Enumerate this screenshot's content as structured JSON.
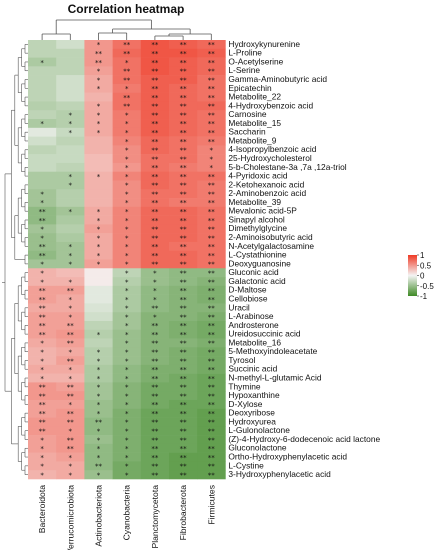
{
  "chart_data": {
    "type": "heatmap",
    "title": "Correlation heatmap",
    "columns": [
      "Bacteroidota",
      "Verrucomicrobiota",
      "Actinobacteriota",
      "Cyanobacteria",
      "Planctomycetota",
      "Fibrobacterota",
      "Firmicutes"
    ],
    "rows": [
      "Hydroxykynurenine",
      "L-Proline",
      "O-Acetylserine",
      "L-Serine",
      "Gamma-Aminobutyric acid",
      "Epicatechin",
      "Metabolite_22",
      "4-Hydroxybenzoic acid",
      "Carnosine",
      "Metabolite_15",
      "Saccharin",
      "Metabolite_9",
      "4-Isopropylbenzoic acid",
      "25-Hydroxycholesterol",
      "5-b-Cholestane-3a ,7a ,12a-triol",
      "4-Pyridoxic acid",
      "2-Ketohexanoic acid",
      "2-Aminobenzoic acid",
      "Metabolite_39",
      "Mevalonic acid-5P",
      "Sinapyl alcohol",
      "Dimethylglycine",
      "2-Aminoisobutyric acid",
      "N-Acetylgalactosamine",
      "L-Cystathionine",
      "Deoxyguanosine",
      "Gluconic acid",
      "Galactonic acid",
      "D-Maltose",
      "Cellobiose",
      "Uracil",
      "L-Arabinose",
      "Androsterone",
      "Ureidosuccinic acid",
      "Metabolite_16",
      "5-Methoxyindoleacetate",
      "Tyrosol",
      "Succinic acid",
      "N-methyl-L-glutamic Acid",
      "Thymine",
      "Hypoxanthine",
      "D-Xylose",
      "Deoxyribose",
      "Hydroxyurea",
      "L-Gulonolactone",
      "(Z)-4-Hydroxy-6-dodecenoic acid lactone",
      "Gluconolactone",
      "Ortho-Hydroxyphenylacetic acid",
      "L-Cystine",
      "3-Hydroxyphenylacetic acid"
    ],
    "values": [
      [
        -0.3,
        -0.2,
        0.5,
        0.7,
        0.85,
        0.8,
        0.75
      ],
      [
        -0.3,
        -0.3,
        0.5,
        0.75,
        0.85,
        0.85,
        0.8
      ],
      [
        -0.4,
        -0.3,
        0.5,
        0.7,
        0.85,
        0.8,
        0.75
      ],
      [
        -0.3,
        -0.3,
        0.45,
        0.7,
        0.85,
        0.8,
        0.75
      ],
      [
        -0.3,
        -0.2,
        0.4,
        0.7,
        0.8,
        0.8,
        0.7
      ],
      [
        -0.3,
        -0.2,
        0.4,
        0.65,
        0.8,
        0.75,
        0.7
      ],
      [
        -0.3,
        -0.2,
        0.35,
        0.7,
        0.8,
        0.75,
        0.7
      ],
      [
        -0.35,
        -0.3,
        0.4,
        0.7,
        0.8,
        0.75,
        0.75
      ],
      [
        -0.3,
        -0.35,
        0.4,
        0.65,
        0.8,
        0.75,
        0.7
      ],
      [
        -0.4,
        -0.35,
        0.4,
        0.65,
        0.8,
        0.75,
        0.7
      ],
      [
        -0.1,
        -0.25,
        0.4,
        0.65,
        0.8,
        0.75,
        0.7
      ],
      [
        -0.2,
        -0.3,
        0.35,
        0.6,
        0.75,
        0.7,
        0.65
      ],
      [
        -0.3,
        -0.25,
        0.35,
        0.55,
        0.75,
        0.7,
        0.6
      ],
      [
        -0.25,
        -0.25,
        0.3,
        0.55,
        0.7,
        0.7,
        0.6
      ],
      [
        -0.25,
        -0.3,
        0.3,
        0.5,
        0.7,
        0.65,
        0.6
      ],
      [
        -0.4,
        -0.4,
        0.35,
        0.6,
        0.75,
        0.7,
        0.7
      ],
      [
        -0.4,
        -0.4,
        0.35,
        0.55,
        0.75,
        0.7,
        0.65
      ],
      [
        -0.45,
        -0.35,
        0.35,
        0.55,
        0.7,
        0.7,
        0.65
      ],
      [
        -0.45,
        -0.35,
        0.35,
        0.55,
        0.7,
        0.65,
        0.65
      ],
      [
        -0.55,
        -0.45,
        0.4,
        0.6,
        0.75,
        0.75,
        0.7
      ],
      [
        -0.55,
        -0.4,
        0.4,
        0.6,
        0.75,
        0.75,
        0.7
      ],
      [
        -0.45,
        -0.35,
        0.45,
        0.6,
        0.75,
        0.75,
        0.7
      ],
      [
        -0.5,
        -0.4,
        0.4,
        0.6,
        0.75,
        0.75,
        0.7
      ],
      [
        -0.5,
        -0.45,
        0.4,
        0.6,
        0.75,
        0.7,
        0.7
      ],
      [
        -0.55,
        -0.45,
        0.4,
        0.6,
        0.75,
        0.75,
        0.7
      ],
      [
        -0.45,
        -0.45,
        0.45,
        0.6,
        0.75,
        0.75,
        0.7
      ],
      [
        0.35,
        0.3,
        0.05,
        -0.3,
        -0.5,
        -0.55,
        -0.55
      ],
      [
        0.35,
        0.35,
        0.05,
        -0.35,
        -0.5,
        -0.55,
        -0.6
      ],
      [
        0.45,
        0.45,
        -0.1,
        -0.4,
        -0.55,
        -0.6,
        -0.65
      ],
      [
        0.45,
        0.4,
        -0.1,
        -0.4,
        -0.55,
        -0.6,
        -0.65
      ],
      [
        0.4,
        0.4,
        -0.15,
        -0.4,
        -0.55,
        -0.6,
        -0.6
      ],
      [
        0.45,
        0.45,
        -0.2,
        -0.45,
        -0.6,
        -0.6,
        -0.65
      ],
      [
        0.45,
        0.45,
        -0.3,
        -0.45,
        -0.6,
        -0.65,
        -0.7
      ],
      [
        0.45,
        0.5,
        -0.35,
        -0.5,
        -0.6,
        -0.65,
        -0.7
      ],
      [
        0.4,
        0.45,
        -0.3,
        -0.5,
        -0.6,
        -0.6,
        -0.65
      ],
      [
        0.35,
        0.4,
        -0.35,
        -0.5,
        -0.6,
        -0.65,
        -0.7
      ],
      [
        0.35,
        0.45,
        -0.35,
        -0.5,
        -0.6,
        -0.65,
        -0.7
      ],
      [
        0.4,
        0.4,
        -0.4,
        -0.55,
        -0.65,
        -0.65,
        -0.7
      ],
      [
        0.35,
        0.35,
        -0.4,
        -0.55,
        -0.65,
        -0.7,
        -0.75
      ],
      [
        0.5,
        0.45,
        -0.45,
        -0.6,
        -0.7,
        -0.7,
        -0.75
      ],
      [
        0.5,
        0.5,
        -0.45,
        -0.6,
        -0.7,
        -0.7,
        -0.75
      ],
      [
        0.45,
        0.45,
        -0.5,
        -0.6,
        -0.7,
        -0.75,
        -0.75
      ],
      [
        0.45,
        0.5,
        -0.5,
        -0.65,
        -0.75,
        -0.75,
        -0.8
      ],
      [
        0.5,
        0.5,
        -0.55,
        -0.65,
        -0.75,
        -0.75,
        -0.8
      ],
      [
        0.5,
        0.5,
        -0.55,
        -0.65,
        -0.75,
        -0.75,
        -0.8
      ],
      [
        0.45,
        0.5,
        -0.5,
        -0.65,
        -0.75,
        -0.75,
        -0.8
      ],
      [
        0.45,
        0.5,
        -0.55,
        -0.65,
        -0.75,
        -0.75,
        -0.8
      ],
      [
        0.4,
        0.45,
        -0.55,
        -0.65,
        -0.75,
        -0.8,
        -0.8
      ],
      [
        0.4,
        0.4,
        -0.55,
        -0.7,
        -0.75,
        -0.8,
        -0.8
      ],
      [
        0.35,
        0.4,
        -0.5,
        -0.7,
        -0.75,
        -0.8,
        -0.8
      ]
    ],
    "significance": [
      [
        "",
        "",
        "*",
        "**",
        "**",
        "**",
        "**"
      ],
      [
        "",
        "",
        "**",
        "**",
        "**",
        "**",
        "**"
      ],
      [
        "*",
        "",
        "**",
        "*",
        "**",
        "**",
        "**"
      ],
      [
        "",
        "",
        "*",
        "**",
        "**",
        "**",
        "**"
      ],
      [
        "",
        "",
        "*",
        "**",
        "**",
        "**",
        "**"
      ],
      [
        "",
        "",
        "*",
        "*",
        "**",
        "**",
        "**"
      ],
      [
        "",
        "",
        "",
        "**",
        "**",
        "**",
        "**"
      ],
      [
        "",
        "",
        "*",
        "**",
        "**",
        "**",
        "**"
      ],
      [
        "",
        "*",
        "*",
        "*",
        "**",
        "**",
        "**"
      ],
      [
        "*",
        "*",
        "*",
        "*",
        "**",
        "**",
        "**"
      ],
      [
        "",
        "*",
        "*",
        "*",
        "**",
        "**",
        "**"
      ],
      [
        "",
        "",
        "",
        "*",
        "**",
        "**",
        "**"
      ],
      [
        "",
        "",
        "",
        "*",
        "**",
        "**",
        "*"
      ],
      [
        "",
        "",
        "",
        "*",
        "**",
        "**",
        "*"
      ],
      [
        "",
        "",
        "",
        "*",
        "**",
        "**",
        "*"
      ],
      [
        "",
        "*",
        "*",
        "*",
        "**",
        "**",
        "**"
      ],
      [
        "",
        "*",
        "",
        "*",
        "**",
        "**",
        "**"
      ],
      [
        "*",
        "",
        "",
        "*",
        "**",
        "**",
        "**"
      ],
      [
        "*",
        "",
        "",
        "*",
        "**",
        "**",
        "**"
      ],
      [
        "**",
        "*",
        "*",
        "*",
        "**",
        "**",
        "**"
      ],
      [
        "**",
        "",
        "*",
        "*",
        "**",
        "**",
        "**"
      ],
      [
        "*",
        "",
        "*",
        "*",
        "**",
        "**",
        "**"
      ],
      [
        "*",
        "",
        "*",
        "*",
        "**",
        "**",
        "**"
      ],
      [
        "**",
        "*",
        "*",
        "*",
        "**",
        "**",
        "**"
      ],
      [
        "**",
        "*",
        "*",
        "*",
        "**",
        "**",
        "**"
      ],
      [
        "*",
        "*",
        "*",
        "*",
        "**",
        "**",
        "**"
      ],
      [
        "*",
        "",
        "",
        "*",
        "*",
        "**",
        "**"
      ],
      [
        "*",
        "*",
        "",
        "*",
        "*",
        "**",
        "**"
      ],
      [
        "**",
        "**",
        "",
        "*",
        "*",
        "**",
        "**"
      ],
      [
        "**",
        "*",
        "",
        "*",
        "*",
        "**",
        "**"
      ],
      [
        "**",
        "*",
        "",
        "*",
        "**",
        "**",
        "**"
      ],
      [
        "**",
        "*",
        "",
        "*",
        "*",
        "**",
        "**"
      ],
      [
        "**",
        "**",
        "",
        "*",
        "**",
        "**",
        "**"
      ],
      [
        "**",
        "**",
        "*",
        "*",
        "**",
        "**",
        "**"
      ],
      [
        "*",
        "**",
        "",
        "*",
        "**",
        "**",
        "**"
      ],
      [
        "*",
        "*",
        "*",
        "*",
        "**",
        "**",
        "**"
      ],
      [
        "*",
        "**",
        "*",
        "*",
        "**",
        "**",
        "**"
      ],
      [
        "*",
        "*",
        "*",
        "*",
        "**",
        "**",
        "**"
      ],
      [
        "*",
        "*",
        "*",
        "*",
        "**",
        "**",
        "**"
      ],
      [
        "**",
        "**",
        "*",
        "*",
        "**",
        "**",
        "**"
      ],
      [
        "**",
        "**",
        "*",
        "*",
        "**",
        "**",
        "**"
      ],
      [
        "**",
        "*",
        "*",
        "*",
        "**",
        "**",
        "**"
      ],
      [
        "**",
        "**",
        "*",
        "*",
        "**",
        "**",
        "**"
      ],
      [
        "**",
        "**",
        "**",
        "*",
        "**",
        "**",
        "**"
      ],
      [
        "**",
        "*",
        "*",
        "*",
        "**",
        "**",
        "**"
      ],
      [
        "*",
        "**",
        "*",
        "*",
        "**",
        "**",
        "**"
      ],
      [
        "*",
        "**",
        "*",
        "*",
        "**",
        "**",
        "**"
      ],
      [
        "*",
        "*",
        "*",
        "*",
        "**",
        "**",
        "**"
      ],
      [
        "*",
        "*",
        "**",
        "*",
        "**",
        "**",
        "**"
      ],
      [
        "*",
        "*",
        "*",
        "*",
        "**",
        "**",
        "**"
      ]
    ],
    "color_scale": {
      "min": -1,
      "max": 1,
      "stops": [
        {
          "value": -1,
          "color": "#3f8a26"
        },
        {
          "value": 0,
          "color": "#f4f4f4"
        },
        {
          "value": 1,
          "color": "#ef3a26"
        }
      ]
    },
    "legend": {
      "ticks": [
        1,
        0.5,
        0,
        -0.5,
        -1
      ],
      "tick_labels": [
        "1",
        "0.5",
        "0",
        "-0.5",
        "-1"
      ],
      "placement": "right"
    },
    "row_dendrogram": {
      "placement": "left",
      "clusters": [
        26,
        24
      ],
      "color": "#555555"
    },
    "col_dendrogram": {
      "placement": "top",
      "clusters": [
        2,
        5
      ],
      "color": "#555555"
    }
  }
}
